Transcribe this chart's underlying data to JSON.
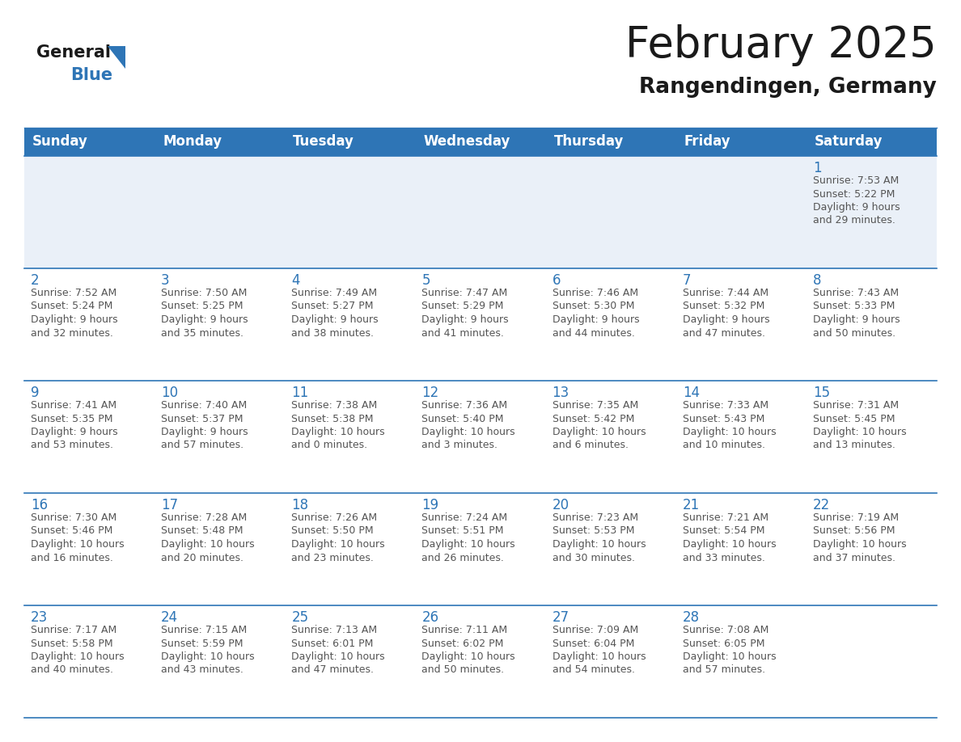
{
  "title": "February 2025",
  "subtitle": "Rangendingen, Germany",
  "header_bg": "#2E75B6",
  "header_text_color": "#FFFFFF",
  "cell_border_color": "#2E75B6",
  "row1_bg": "#EAF0F8",
  "row_bg": "#FFFFFF",
  "day_number_color": "#2E75B6",
  "info_text_color": "#555555",
  "background_color": "#FFFFFF",
  "days_of_week": [
    "Sunday",
    "Monday",
    "Tuesday",
    "Wednesday",
    "Thursday",
    "Friday",
    "Saturday"
  ],
  "weeks": [
    [
      {
        "day": null,
        "info": ""
      },
      {
        "day": null,
        "info": ""
      },
      {
        "day": null,
        "info": ""
      },
      {
        "day": null,
        "info": ""
      },
      {
        "day": null,
        "info": ""
      },
      {
        "day": null,
        "info": ""
      },
      {
        "day": 1,
        "info": "Sunrise: 7:53 AM\nSunset: 5:22 PM\nDaylight: 9 hours\nand 29 minutes."
      }
    ],
    [
      {
        "day": 2,
        "info": "Sunrise: 7:52 AM\nSunset: 5:24 PM\nDaylight: 9 hours\nand 32 minutes."
      },
      {
        "day": 3,
        "info": "Sunrise: 7:50 AM\nSunset: 5:25 PM\nDaylight: 9 hours\nand 35 minutes."
      },
      {
        "day": 4,
        "info": "Sunrise: 7:49 AM\nSunset: 5:27 PM\nDaylight: 9 hours\nand 38 minutes."
      },
      {
        "day": 5,
        "info": "Sunrise: 7:47 AM\nSunset: 5:29 PM\nDaylight: 9 hours\nand 41 minutes."
      },
      {
        "day": 6,
        "info": "Sunrise: 7:46 AM\nSunset: 5:30 PM\nDaylight: 9 hours\nand 44 minutes."
      },
      {
        "day": 7,
        "info": "Sunrise: 7:44 AM\nSunset: 5:32 PM\nDaylight: 9 hours\nand 47 minutes."
      },
      {
        "day": 8,
        "info": "Sunrise: 7:43 AM\nSunset: 5:33 PM\nDaylight: 9 hours\nand 50 minutes."
      }
    ],
    [
      {
        "day": 9,
        "info": "Sunrise: 7:41 AM\nSunset: 5:35 PM\nDaylight: 9 hours\nand 53 minutes."
      },
      {
        "day": 10,
        "info": "Sunrise: 7:40 AM\nSunset: 5:37 PM\nDaylight: 9 hours\nand 57 minutes."
      },
      {
        "day": 11,
        "info": "Sunrise: 7:38 AM\nSunset: 5:38 PM\nDaylight: 10 hours\nand 0 minutes."
      },
      {
        "day": 12,
        "info": "Sunrise: 7:36 AM\nSunset: 5:40 PM\nDaylight: 10 hours\nand 3 minutes."
      },
      {
        "day": 13,
        "info": "Sunrise: 7:35 AM\nSunset: 5:42 PM\nDaylight: 10 hours\nand 6 minutes."
      },
      {
        "day": 14,
        "info": "Sunrise: 7:33 AM\nSunset: 5:43 PM\nDaylight: 10 hours\nand 10 minutes."
      },
      {
        "day": 15,
        "info": "Sunrise: 7:31 AM\nSunset: 5:45 PM\nDaylight: 10 hours\nand 13 minutes."
      }
    ],
    [
      {
        "day": 16,
        "info": "Sunrise: 7:30 AM\nSunset: 5:46 PM\nDaylight: 10 hours\nand 16 minutes."
      },
      {
        "day": 17,
        "info": "Sunrise: 7:28 AM\nSunset: 5:48 PM\nDaylight: 10 hours\nand 20 minutes."
      },
      {
        "day": 18,
        "info": "Sunrise: 7:26 AM\nSunset: 5:50 PM\nDaylight: 10 hours\nand 23 minutes."
      },
      {
        "day": 19,
        "info": "Sunrise: 7:24 AM\nSunset: 5:51 PM\nDaylight: 10 hours\nand 26 minutes."
      },
      {
        "day": 20,
        "info": "Sunrise: 7:23 AM\nSunset: 5:53 PM\nDaylight: 10 hours\nand 30 minutes."
      },
      {
        "day": 21,
        "info": "Sunrise: 7:21 AM\nSunset: 5:54 PM\nDaylight: 10 hours\nand 33 minutes."
      },
      {
        "day": 22,
        "info": "Sunrise: 7:19 AM\nSunset: 5:56 PM\nDaylight: 10 hours\nand 37 minutes."
      }
    ],
    [
      {
        "day": 23,
        "info": "Sunrise: 7:17 AM\nSunset: 5:58 PM\nDaylight: 10 hours\nand 40 minutes."
      },
      {
        "day": 24,
        "info": "Sunrise: 7:15 AM\nSunset: 5:59 PM\nDaylight: 10 hours\nand 43 minutes."
      },
      {
        "day": 25,
        "info": "Sunrise: 7:13 AM\nSunset: 6:01 PM\nDaylight: 10 hours\nand 47 minutes."
      },
      {
        "day": 26,
        "info": "Sunrise: 7:11 AM\nSunset: 6:02 PM\nDaylight: 10 hours\nand 50 minutes."
      },
      {
        "day": 27,
        "info": "Sunrise: 7:09 AM\nSunset: 6:04 PM\nDaylight: 10 hours\nand 54 minutes."
      },
      {
        "day": 28,
        "info": "Sunrise: 7:08 AM\nSunset: 6:05 PM\nDaylight: 10 hours\nand 57 minutes."
      },
      {
        "day": null,
        "info": ""
      }
    ]
  ],
  "logo_general_color": "#1a1a1a",
  "logo_blue_color": "#2E75B6",
  "title_fontsize": 38,
  "subtitle_fontsize": 19,
  "header_fontsize": 12,
  "day_number_fontsize": 12,
  "info_fontsize": 9,
  "logo_fontsize": 15
}
